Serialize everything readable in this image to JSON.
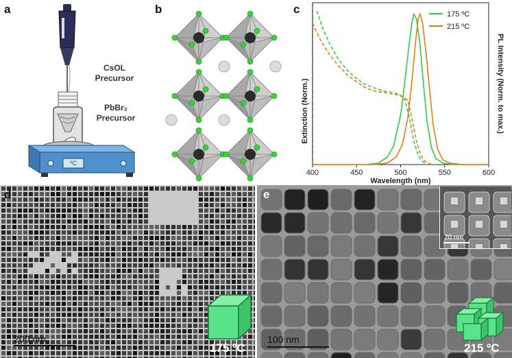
{
  "panels": {
    "a": {
      "letter": "a",
      "label1_line1": "CsOL",
      "label1_line2": "Precursor",
      "label2_line1": "PbBr₂",
      "label2_line2": "Precursor",
      "device_label": "ºC"
    },
    "b": {
      "letter": "b"
    },
    "c": {
      "letter": "c"
    },
    "d": {
      "letter": "d",
      "scale": "200 nm",
      "temp": "175 ºC"
    },
    "e": {
      "letter": "e",
      "scale": "100 nm",
      "temp": "215 ºC",
      "inset_scale": "20 nm"
    }
  },
  "colors": {
    "green": "#2ecc40",
    "orange": "#e07b14",
    "cube": "#5be38a"
  },
  "chart_data": {
    "type": "line",
    "xlabel": "Wavelength (nm)",
    "ylabel_left": "Extinction (Norm.)",
    "ylabel_right": "PL Intensity (Norm. to max.)",
    "xlim": [
      400,
      600
    ],
    "ylim": [
      0,
      1
    ],
    "x_ticks": [
      400,
      450,
      500,
      550,
      600
    ],
    "legend": "top-right",
    "series": [
      {
        "name": "175 ºC",
        "color": "#2ecc40",
        "kind": "PL",
        "x": [
          400,
          460,
          475,
          485,
          492,
          500,
          505,
          510,
          513,
          515,
          518,
          522,
          526,
          530,
          535,
          540,
          548,
          560,
          600
        ],
        "y": [
          0,
          0,
          0.01,
          0.05,
          0.12,
          0.32,
          0.55,
          0.8,
          0.93,
          0.98,
          0.95,
          0.78,
          0.52,
          0.28,
          0.11,
          0.04,
          0.01,
          0,
          0
        ]
      },
      {
        "name": "215 ºC",
        "color": "#e07b14",
        "kind": "PL",
        "x": [
          400,
          470,
          485,
          495,
          502,
          508,
          513,
          517,
          520,
          522,
          525,
          529,
          533,
          537,
          542,
          548,
          556,
          570,
          600
        ],
        "y": [
          0,
          0,
          0.01,
          0.05,
          0.13,
          0.3,
          0.55,
          0.8,
          0.95,
          0.98,
          0.92,
          0.72,
          0.48,
          0.26,
          0.1,
          0.03,
          0.01,
          0,
          0
        ]
      },
      {
        "name": "175 ºC",
        "color": "#2ecc40",
        "kind": "extinction",
        "x": [
          405,
          412,
          420,
          430,
          440,
          450,
          460,
          470,
          480,
          490,
          498,
          505,
          510,
          515,
          520,
          525,
          530
        ],
        "y": [
          1.0,
          0.88,
          0.78,
          0.68,
          0.61,
          0.56,
          0.52,
          0.5,
          0.48,
          0.47,
          0.46,
          0.42,
          0.3,
          0.15,
          0.06,
          0.02,
          0
        ]
      },
      {
        "name": "215 ºC",
        "color": "#e07b14",
        "kind": "extinction",
        "x": [
          400,
          410,
          420,
          430,
          440,
          450,
          460,
          470,
          480,
          490,
          500,
          508,
          513,
          518,
          523,
          528,
          535
        ],
        "y": [
          0.92,
          0.8,
          0.71,
          0.64,
          0.58,
          0.54,
          0.5,
          0.48,
          0.47,
          0.46,
          0.45,
          0.42,
          0.3,
          0.15,
          0.06,
          0.02,
          0
        ]
      }
    ]
  }
}
